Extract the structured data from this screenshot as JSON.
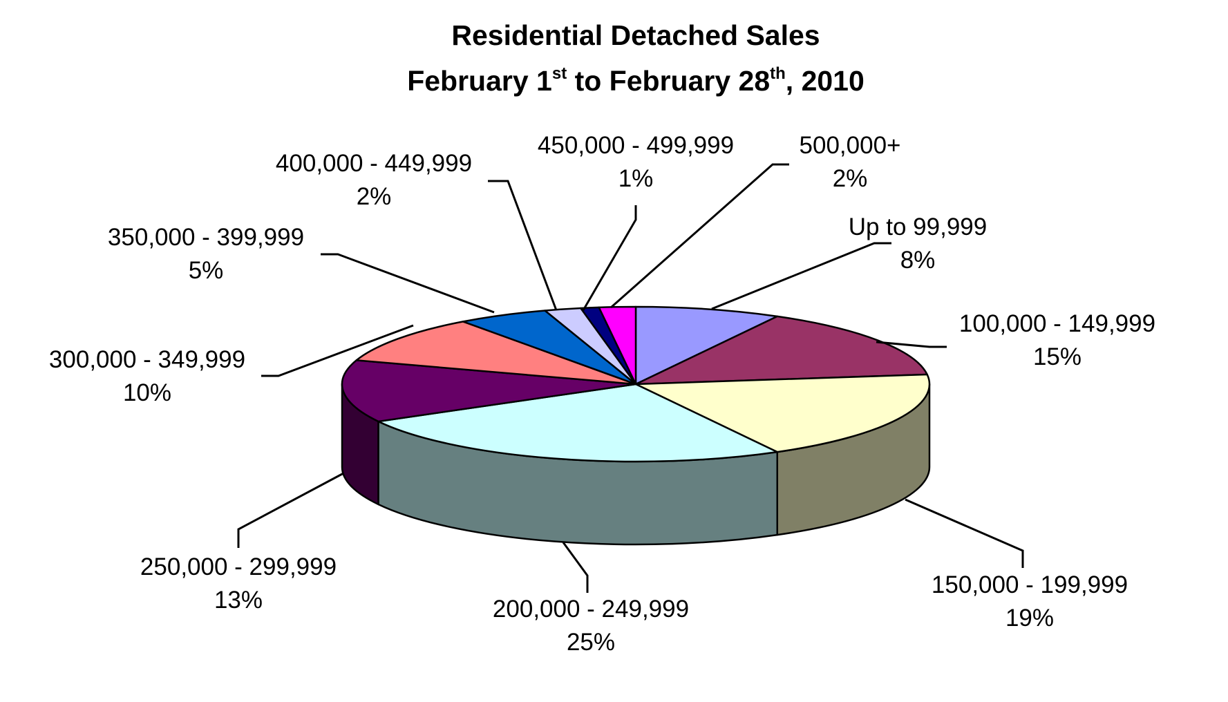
{
  "chart_data": {
    "type": "pie",
    "title": {
      "line1": "Residential Detached Sales",
      "line2_parts": [
        "February 1",
        "st",
        " to February 28",
        "th",
        ", 2010"
      ]
    },
    "slices": [
      {
        "label": "Up to 99,999",
        "value": 8,
        "pct_label": "8%",
        "color": "#9999FF",
        "side_color": "#4D4D80"
      },
      {
        "label": "100,000 - 149,999",
        "value": 15,
        "pct_label": "15%",
        "color": "#993366",
        "side_color": "#4D1A33"
      },
      {
        "label": "150,000 - 199,999",
        "value": 19,
        "pct_label": "19%",
        "color": "#FFFFCC",
        "side_color": "#808066"
      },
      {
        "label": "200,000 - 249,999",
        "value": 25,
        "pct_label": "25%",
        "color": "#CCFFFF",
        "side_color": "#668080"
      },
      {
        "label": "250,000 - 299,999",
        "value": 13,
        "pct_label": "13%",
        "color": "#660066",
        "side_color": "#330033"
      },
      {
        "label": "300,000 - 349,999",
        "value": 10,
        "pct_label": "10%",
        "color": "#FF8080",
        "side_color": "#804040"
      },
      {
        "label": "350,000 - 399,999",
        "value": 5,
        "pct_label": "5%",
        "color": "#0066CC",
        "side_color": "#003366"
      },
      {
        "label": "400,000 - 449,999",
        "value": 2,
        "pct_label": "2%",
        "color": "#CCCCFF",
        "side_color": "#666680"
      },
      {
        "label": "450,000 - 499,999",
        "value": 1,
        "pct_label": "1%",
        "color": "#000080",
        "side_color": "#000040"
      },
      {
        "label": "500,000+",
        "value": 2,
        "pct_label": "2%",
        "color": "#FF00FF",
        "side_color": "#800080"
      }
    ]
  }
}
